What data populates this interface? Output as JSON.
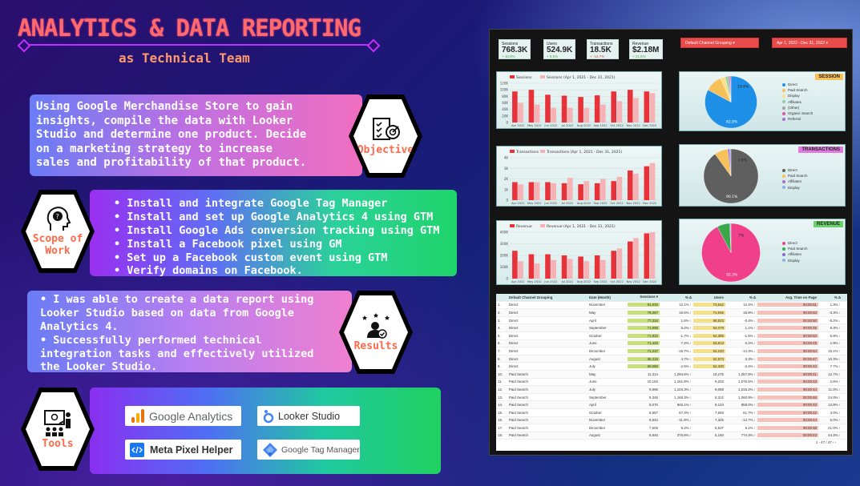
{
  "header": {
    "title": "ANALYTICS & DATA REPORTING",
    "subtitle": "as Technical Team"
  },
  "objective": {
    "text": "Using Google Merchandise Store to gain insights, compile the data with Looker Studio and determine one product. Decide on a marketing strategy to increase sales and profitability of that product.",
    "label": "Objective",
    "icon": "target-checklist-icon"
  },
  "scope": {
    "label": "Scope of Work",
    "icon": "head-question-icon",
    "items": [
      "Install and integrate Google Tag Manager",
      "Install and set up Google Analytics 4 using GTM",
      "Install Google Ads conversion tracking using GTM",
      "Install a Facebook pixel using GM",
      "Set up a Facebook custom event using GTM",
      "Verify domains on Facebook."
    ]
  },
  "results": {
    "label": "Results",
    "icon": "user-stars-icon",
    "items": [
      "I was able to create a data report using Looker Studio based on data from Google Analytics 4.",
      "Successfully performed technical integration tasks and effectively utilized the Looker Studio."
    ]
  },
  "tools": {
    "label": "Tools",
    "icon": "presentation-icon",
    "items": [
      "Google Analytics",
      "Looker Studio",
      "Meta Pixel Helper",
      "Google Tag Manager"
    ]
  },
  "dashboard": {
    "kpis": [
      {
        "label": "Sessions",
        "value": "768.3K",
        "delta": "+ 10.8%"
      },
      {
        "label": "Users",
        "value": "524.9K",
        "delta": "+ 8.5%"
      },
      {
        "label": "Transactions",
        "value": "18.5K",
        "delta": "+ -12.7%"
      },
      {
        "label": "Revenue",
        "value": "$2.18M",
        "delta": "+ 21.6%"
      }
    ],
    "filter": "Default Channel Grouping",
    "date_range": "Apr 1, 2022 - Dec 31, 2022",
    "pie_tags": [
      "SESSION",
      "TRANSACTIONS",
      "REVENUE"
    ],
    "pie_legends": [
      [
        "Direct",
        "Paid Search",
        "Display",
        "Affiliates",
        "(Other)",
        "Organic Search",
        "Referral"
      ],
      [
        "Direct",
        "Paid Search",
        "Affiliates",
        "Display"
      ],
      [
        "Direct",
        "Paid Search",
        "Affiliates",
        "Display"
      ]
    ],
    "pie_labels": [
      [
        "10.6%",
        "82.8%"
      ],
      [
        "7.9%",
        "90.1%"
      ],
      [
        "7%",
        "92.3%"
      ]
    ],
    "table_headers": [
      "",
      "Default Channel Grouping",
      "Date (Month)",
      "Sessions ▾",
      "% Δ",
      "Users",
      "% Δ",
      "Avg. Time on Page",
      "% Δ"
    ],
    "table_rows": [
      [
        "1.",
        "Direct",
        "November",
        "81,033",
        "12.1% ↑",
        "73,542",
        "12.4% ↑",
        "00:00:51",
        "1.3% ↑"
      ],
      [
        "2.",
        "Direct",
        "May",
        "79,367",
        "16.6% ↑",
        "71,946",
        "15.9% ↑",
        "00:00:53",
        "-3.3% ↓"
      ],
      [
        "3.",
        "Direct",
        "April",
        "77,334",
        "1.6% ↑",
        "68,823",
        "-0.4% ↓",
        "00:00:50",
        "-6.2% ↓"
      ],
      [
        "4.",
        "Direct",
        "September",
        "71,996",
        "6.2% ↑",
        "64,079",
        "1.1% ↑",
        "00:00:46",
        "8.3% ↑"
      ],
      [
        "5.",
        "Direct",
        "October",
        "71,910",
        "-1.7% ↓",
        "64,389",
        "-1.6% ↓",
        "00:00:53",
        "6.9% ↑"
      ],
      [
        "6.",
        "Direct",
        "June",
        "71,425",
        "7.4% ↑",
        "63,813",
        "6.2% ↑",
        "00:00:49",
        "2.9% ↑"
      ],
      [
        "7.",
        "Direct",
        "December",
        "71,337",
        "-15.7% ↓",
        "64,220",
        "-14.3% ↓",
        "00:00:54",
        "15.1% ↑"
      ],
      [
        "8.",
        "Direct",
        "August",
        "65,315",
        "4.7% ↑",
        "52,573",
        "3.3% ↑",
        "00:00:47",
        "10.3% ↑"
      ],
      [
        "9.",
        "Direct",
        "July",
        "60,080",
        "-2.5% ↓",
        "52,330",
        "-2.4% ↓",
        "00:00:43",
        "7.7% ↑"
      ],
      [
        "10.",
        "Paid Search",
        "May",
        "11,314",
        "1,294.6% ↑",
        "10,275",
        "1,257.8% ↑",
        "00:00:41",
        "12.7% ↑"
      ],
      [
        "11.",
        "Paid Search",
        "June",
        "10,183",
        "1,161.8% ↑",
        "9,203",
        "1,076.5% ↑",
        "00:00:43",
        "2.6% ↑"
      ],
      [
        "12.",
        "Paid Search",
        "July",
        "9,996",
        "1,104.3% ↑",
        "9,089",
        "1,015.2% ↑",
        "00:00:44",
        "11.0% ↑"
      ],
      [
        "13.",
        "Paid Search",
        "September",
        "9,346",
        "1,165.3% ↑",
        "8,312",
        "1,060.9% ↑",
        "00:00:46",
        "24.0% ↑"
      ],
      [
        "14.",
        "Paid Search",
        "April",
        "9,070",
        "946.1% ↑",
        "8,104",
        "858.0% ↑",
        "00:00:43",
        "12.8% ↑"
      ],
      [
        "15.",
        "Paid Search",
        "October",
        "8,557",
        "67.2% ↑",
        "7,693",
        "61.7% ↑",
        "00:00:42",
        "3.0% ↑"
      ],
      [
        "16.",
        "Paid Search",
        "November",
        "8,542",
        "-11.8% ↓",
        "7,325",
        "-14.7% ↓",
        "00:00:44",
        "6.0% ↑"
      ],
      [
        "17.",
        "Paid Search",
        "December",
        "7,605",
        "5.2% ↑",
        "6,537",
        "5.1% ↑",
        "00:00:48",
        "21.0% ↑"
      ],
      [
        "18.",
        "Paid Search",
        "August",
        "6,945",
        "375.8% ↑",
        "6,183",
        "774.3% ↑",
        "00:00:43",
        "44.3% ↑"
      ]
    ],
    "pagination": "1 - 47 / 47"
  },
  "chart_data": [
    {
      "type": "bar",
      "title": "Sessions",
      "categories": [
        "Apr 2022",
        "May 2022",
        "Jun 2022",
        "Jul 2022",
        "Aug 2022",
        "Sep 2022",
        "Oct 2022",
        "Nov 2022",
        "Dec 2022"
      ],
      "series": [
        {
          "name": "Sessions",
          "values": [
            95000,
            100000,
            85000,
            82000,
            78000,
            83000,
            95000,
            100000,
            95000
          ]
        },
        {
          "name": "Sessions (Apr 1, 2021 - Dec 31, 2021)",
          "values": [
            60000,
            55000,
            45000,
            45000,
            45000,
            55000,
            65000,
            75000,
            90000
          ]
        }
      ],
      "ylim": [
        0,
        120000
      ],
      "ytick_labels": [
        "0",
        "20K",
        "40K",
        "60K",
        "80K",
        "100K",
        "120K"
      ]
    },
    {
      "type": "bar",
      "title": "Transactions",
      "categories": [
        "Apr 2022",
        "May 2022",
        "Jun 2022",
        "Jul 2022",
        "Aug 2022",
        "Sep 2022",
        "Oct 2022",
        "Nov 2022",
        "Dec 2022"
      ],
      "series": [
        {
          "name": "Transactions",
          "values": [
            1700,
            1700,
            1700,
            1600,
            1500,
            1600,
            1800,
            2800,
            3200
          ]
        },
        {
          "name": "Transactions (Apr 1, 2021 - Dec 31, 2021)",
          "values": [
            1500,
            1700,
            1600,
            2100,
            1800,
            2000,
            2200,
            2500,
            3500
          ]
        }
      ],
      "ylim": [
        0,
        4000
      ],
      "ytick_labels": [
        "0",
        "1K",
        "2K",
        "3K",
        "4K"
      ]
    },
    {
      "type": "bar",
      "title": "Revenue",
      "categories": [
        "Apr 2022",
        "May 2022",
        "Jun 2022",
        "Jul 2022",
        "Aug 2022",
        "Sep 2022",
        "Oct 2022",
        "Nov 2022",
        "Dec 2022"
      ],
      "series": [
        {
          "name": "Revenue",
          "values": [
            240000,
            210000,
            210000,
            200000,
            190000,
            200000,
            240000,
            320000,
            390000
          ]
        },
        {
          "name": "Revenue (Apr 1, 2021 - Dec 31, 2021)",
          "values": [
            150000,
            130000,
            160000,
            170000,
            150000,
            160000,
            260000,
            350000,
            400000
          ]
        }
      ],
      "ylim": [
        0,
        400000
      ],
      "ytick_labels": [
        "0",
        "100K",
        "200K",
        "300K",
        "400K"
      ]
    },
    {
      "type": "pie",
      "title": "SESSION",
      "labels": [
        "Direct",
        "Paid Search",
        "Display",
        "Affiliates",
        "(Other)",
        "Organic Search",
        "Referral"
      ],
      "values": [
        82.8,
        10.6,
        3,
        1.5,
        1,
        0.6,
        0.5
      ],
      "colors": [
        "#1e90e8",
        "#f7c15a",
        "#ffe08a",
        "#8fd0a0",
        "#a0a0a0",
        "#e05aa0",
        "#b06ad0"
      ]
    },
    {
      "type": "pie",
      "title": "TRANSACTIONS",
      "labels": [
        "Direct",
        "Paid Search",
        "Affiliates",
        "Display"
      ],
      "values": [
        90.1,
        7.9,
        1.2,
        0.8
      ],
      "colors": [
        "#5f5f5f",
        "#f7c15a",
        "#b06ad0",
        "#8fb0e0"
      ]
    },
    {
      "type": "pie",
      "title": "REVENUE",
      "labels": [
        "Direct",
        "Paid Search",
        "Affiliates",
        "Display"
      ],
      "values": [
        92.3,
        7,
        0.4,
        0.3
      ],
      "colors": [
        "#f0408a",
        "#3aa84a",
        "#8a6ad0",
        "#8fb0e0"
      ]
    }
  ]
}
